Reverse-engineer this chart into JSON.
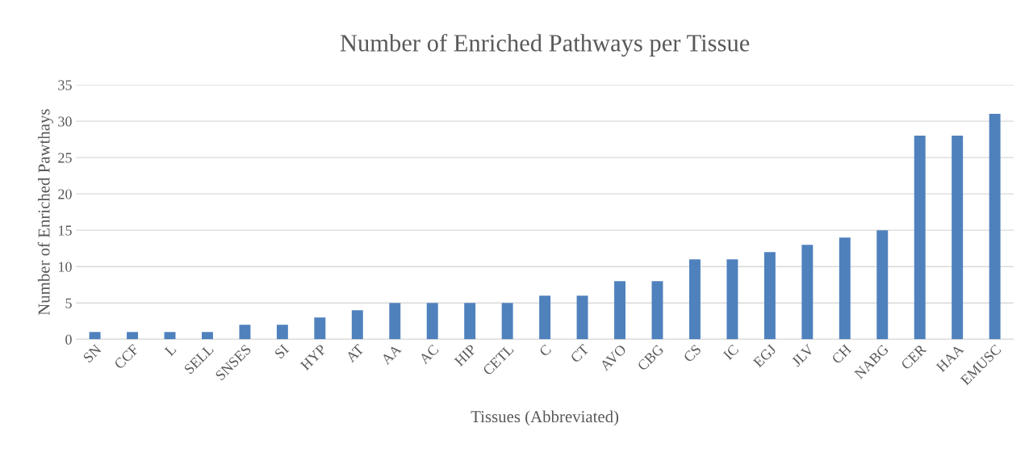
{
  "chart_data": {
    "type": "bar",
    "title": "Number of Enriched Pathways per Tissue",
    "xlabel": "Tissues (Abbreviated)",
    "ylabel": "Number of Enriched Pawthays",
    "categories": [
      "SN",
      "CCF",
      "L",
      "SELL",
      "SNSES",
      "SI",
      "HYP",
      "AT",
      "AA",
      "AC",
      "HIP",
      "CETL",
      "C",
      "CT",
      "AVO",
      "CBG",
      "CS",
      "IC",
      "EGJ",
      "JLV",
      "CH",
      "NABG",
      "CER",
      "HAA",
      "EMUSC"
    ],
    "values": [
      1,
      1,
      1,
      1,
      2,
      2,
      3,
      4,
      5,
      5,
      5,
      5,
      6,
      6,
      8,
      8,
      11,
      11,
      12,
      13,
      14,
      15,
      28,
      28,
      31
    ],
    "color": "#4f81bd",
    "ylim": [
      0,
      35
    ],
    "yticks": [
      0,
      5,
      10,
      15,
      20,
      25,
      30,
      35
    ],
    "grid": "y"
  }
}
